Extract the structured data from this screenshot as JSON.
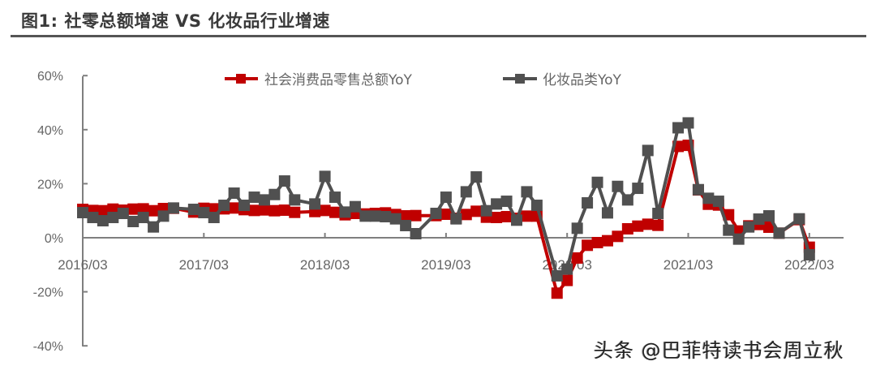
{
  "header": {
    "title": "图1: 社零总额增速 VS 化妆品行业增速"
  },
  "legend": {
    "series_1": "社会消费品零售总额YoY",
    "series_2": "化妆品类YoY"
  },
  "watermark": "头条 @巴菲特读书会周立秋",
  "colors": {
    "retail": "#c00000",
    "cosmetics": "#505050",
    "axis": "#7f7f7f",
    "text": "#666666"
  },
  "chart_data": {
    "type": "line",
    "title": "图1: 社零总额增速 VS 化妆品行业增速",
    "xlabel": "",
    "ylabel": "",
    "ylim": [
      -0.4,
      0.6
    ],
    "yticks": [
      "60%",
      "40%",
      "20%",
      "0%",
      "-20%",
      "-40%"
    ],
    "xticks": [
      "2016/03",
      "2017/03",
      "2018/03",
      "2019/03",
      "2020/03",
      "2021/03",
      "2022/03"
    ],
    "grid": false,
    "legend_position": "top",
    "x": [
      "2016/03",
      "2016/04",
      "2016/05",
      "2016/06",
      "2016/07",
      "2016/08",
      "2016/09",
      "2016/10",
      "2016/11",
      "2016/12",
      "2017/02",
      "2017/03",
      "2017/04",
      "2017/05",
      "2017/06",
      "2017/07",
      "2017/08",
      "2017/09",
      "2017/10",
      "2017/11",
      "2017/12",
      "2018/02",
      "2018/03",
      "2018/04",
      "2018/05",
      "2018/06",
      "2018/07",
      "2018/08",
      "2018/09",
      "2018/10",
      "2018/11",
      "2018/12",
      "2019/02",
      "2019/03",
      "2019/04",
      "2019/05",
      "2019/06",
      "2019/07",
      "2019/08",
      "2019/09",
      "2019/10",
      "2019/11",
      "2019/12",
      "2020/02",
      "2020/03",
      "2020/04",
      "2020/05",
      "2020/06",
      "2020/07",
      "2020/08",
      "2020/09",
      "2020/10",
      "2020/11",
      "2020/12",
      "2021/02",
      "2021/03",
      "2021/04",
      "2021/05",
      "2021/06",
      "2021/07",
      "2021/08",
      "2021/09",
      "2021/10",
      "2021/11",
      "2021/12",
      "2022/02",
      "2022/03"
    ],
    "series": [
      {
        "name": "社会消费品零售总额YoY",
        "color": "#c00000",
        "values": [
          10.5,
          10.1,
          10.0,
          10.6,
          10.2,
          10.6,
          10.7,
          10.0,
          10.8,
          10.9,
          9.5,
          10.9,
          10.7,
          10.7,
          11.0,
          10.4,
          10.1,
          10.3,
          10.0,
          10.2,
          9.4,
          9.7,
          10.1,
          9.4,
          8.5,
          9.0,
          8.8,
          9.0,
          9.2,
          8.6,
          8.1,
          8.2,
          8.2,
          8.7,
          7.2,
          8.6,
          9.8,
          7.6,
          7.5,
          7.8,
          7.2,
          8.0,
          8.0,
          -20.5,
          -15.8,
          -7.5,
          -2.8,
          -1.8,
          -1.1,
          0.5,
          3.3,
          4.3,
          5.0,
          4.6,
          33.8,
          34.2,
          17.7,
          12.4,
          12.1,
          8.5,
          2.5,
          4.4,
          4.9,
          3.9,
          1.7,
          6.7,
          -3.5
        ]
      },
      {
        "name": "化妆品类YoY",
        "color": "#505050",
        "values": [
          9.3,
          7.5,
          6.3,
          7.5,
          9.0,
          6.0,
          7.5,
          4.0,
          8.0,
          11.0,
          10.5,
          9.3,
          7.5,
          12.0,
          16.5,
          12.0,
          15.0,
          14.0,
          16.0,
          21.0,
          14.0,
          12.5,
          22.7,
          15.0,
          9.5,
          11.5,
          8.0,
          8.0,
          7.8,
          7.0,
          4.5,
          1.5,
          9.0,
          15.0,
          7.0,
          17.0,
          22.5,
          10.0,
          12.5,
          13.5,
          6.5,
          17.0,
          12.0,
          -14.1,
          -11.6,
          3.5,
          12.9,
          20.5,
          9.2,
          19.0,
          14.0,
          18.3,
          32.3,
          9.0,
          40.7,
          42.5,
          17.8,
          14.6,
          13.5,
          2.8,
          -0.5,
          4.0,
          6.9,
          8.1,
          1.7,
          7.0,
          -6.3
        ]
      }
    ]
  }
}
